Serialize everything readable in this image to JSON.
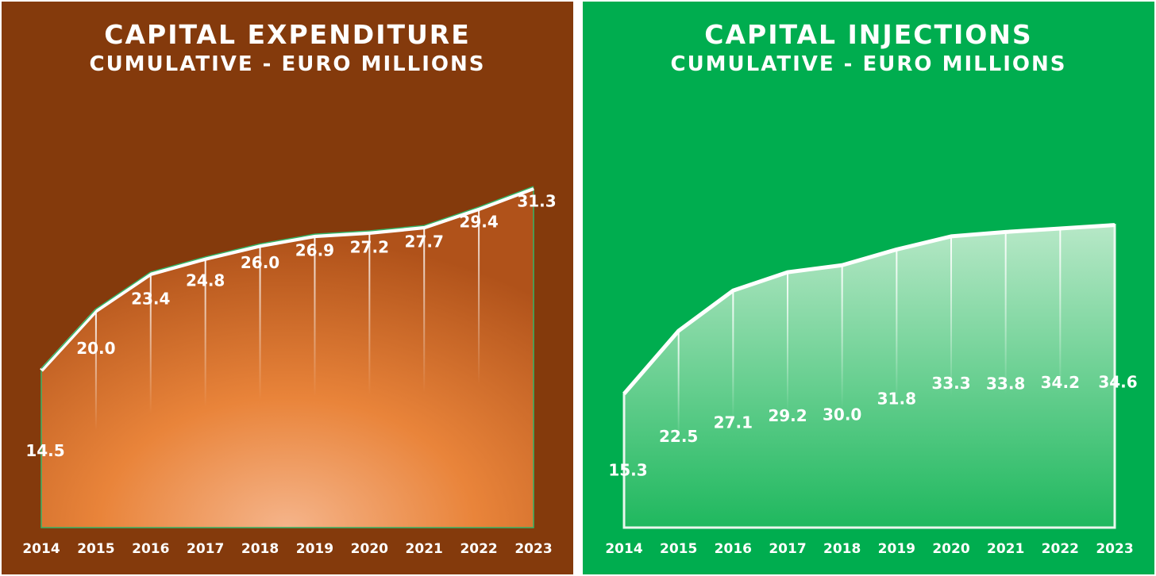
{
  "colors": {
    "left_background": "#843a0c",
    "left_area_dark": "#b0521a",
    "left_area_mid": "#e9843a",
    "left_area_light": "#f5b48a",
    "left_outline": "#35b466",
    "right_background": "#00ad4f",
    "right_area_top": "#b7e8c7",
    "right_area_bottom": "#1fb85e",
    "right_outline": "#eaf7ee",
    "text": "#ffffff"
  },
  "panels": [
    {
      "title": "CAPITAL EXPENDITURE",
      "subtitle": "CUMULATIVE - EURO MILLIONS"
    },
    {
      "title": "CAPITAL INJECTIONS",
      "subtitle": "CUMULATIVE - EURO MILLIONS"
    }
  ],
  "chart_data": [
    {
      "type": "area",
      "title": "CAPITAL EXPENDITURE",
      "subtitle": "CUMULATIVE - EURO MILLIONS",
      "categories": [
        "2014",
        "2015",
        "2016",
        "2017",
        "2018",
        "2019",
        "2020",
        "2021",
        "2022",
        "2023"
      ],
      "values": [
        14.5,
        20.0,
        23.4,
        24.8,
        26.0,
        26.9,
        27.2,
        27.7,
        29.4,
        31.3
      ],
      "value_labels": [
        "14.5",
        "20.0",
        "23.4",
        "24.8",
        "26.0",
        "26.9",
        "27.2",
        "27.7",
        "29.4",
        "31.3"
      ],
      "ylim": [
        0,
        35
      ],
      "grid": false,
      "legend": "none"
    },
    {
      "type": "area",
      "title": "CAPITAL INJECTIONS",
      "subtitle": "CUMULATIVE - EURO MILLIONS",
      "categories": [
        "2014",
        "2015",
        "2016",
        "2017",
        "2018",
        "2019",
        "2020",
        "2021",
        "2022",
        "2023"
      ],
      "values": [
        15.3,
        22.5,
        27.1,
        29.2,
        30.0,
        31.8,
        33.3,
        33.8,
        34.2,
        34.6
      ],
      "value_labels": [
        "15.3",
        "22.5",
        "27.1",
        "29.2",
        "30.0",
        "31.8",
        "33.3",
        "33.8",
        "34.2",
        "34.6"
      ],
      "ylim": [
        0,
        42
      ],
      "grid": false,
      "legend": "none"
    }
  ]
}
